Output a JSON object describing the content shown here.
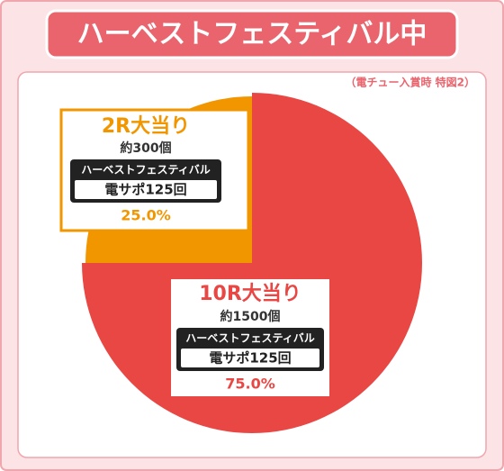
{
  "chart_data": {
    "type": "pie",
    "title": "ハーベストフェスティバル中",
    "subtitle": "（電チュー入賞時 特図2）",
    "categories": [
      "10R大当り",
      "2R大当り"
    ],
    "values": [
      75,
      25
    ],
    "value_labels": [
      "75.0%",
      "25.0%"
    ],
    "colors": [
      "#e84744",
      "#f29600"
    ],
    "details": [
      {
        "payout": "約1500個",
        "mode": "ハーベストフェスティバル",
        "support": "電サポ125回"
      },
      {
        "payout": "約300個",
        "mode": "ハーベストフェスティバル",
        "support": "電サポ125回"
      }
    ]
  }
}
